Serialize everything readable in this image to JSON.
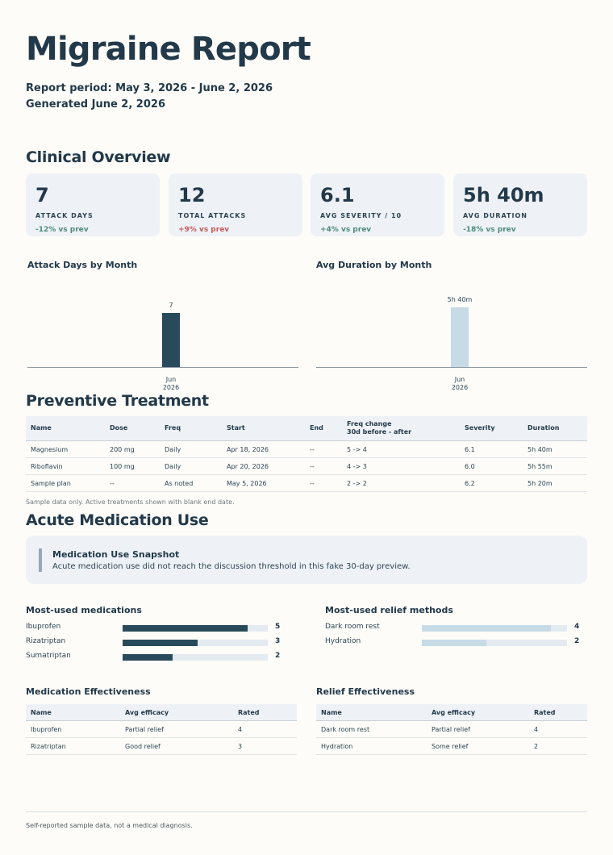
{
  "header": {
    "title": "Migraine Report",
    "period": "Report period: May 3, 2026 - June 2, 2026",
    "generated": "Generated June 2, 2026"
  },
  "overview": {
    "heading": "Clinical Overview",
    "cards": [
      {
        "value": "7",
        "label": "ATTACK DAYS",
        "change": "-12% vs prev",
        "trend": "good"
      },
      {
        "value": "12",
        "label": "TOTAL ATTACKS",
        "change": "+9% vs prev",
        "trend": "bad"
      },
      {
        "value": "6.1",
        "label": "AVG SEVERITY / 10",
        "change": "+4% vs prev",
        "trend": "good"
      },
      {
        "value": "5h 40m",
        "label": "AVG DURATION",
        "change": "-18% vs prev",
        "trend": "good"
      }
    ]
  },
  "chart_data": [
    {
      "type": "bar",
      "title": "Attack Days by Month",
      "categories": [
        "Jun 2026"
      ],
      "values": [
        7
      ],
      "data_labels": [
        "7"
      ],
      "ylim": [
        0,
        10
      ],
      "color": "#294a5a"
    },
    {
      "type": "bar",
      "title": "Avg Duration by Month",
      "categories": [
        "Jun 2026"
      ],
      "values": [
        340
      ],
      "data_labels": [
        "5h 40m"
      ],
      "ylim": [
        0,
        440
      ],
      "color": "#c6dbe6"
    }
  ],
  "chart_ticks": [
    [
      "Jun",
      "2026"
    ],
    [
      "Jun",
      "2026"
    ]
  ],
  "preventive": {
    "heading": "Preventive Treatment",
    "columns": [
      "Name",
      "Dose",
      "Freq",
      "Start",
      "End",
      "Freq change",
      "30d before - after",
      "Severity",
      "Duration"
    ],
    "rows": [
      [
        "Magnesium",
        "200 mg",
        "Daily",
        "Apr 18, 2026",
        "--",
        "5 -> 4",
        "6.1",
        "5h 40m"
      ],
      [
        "Riboflavin",
        "100 mg",
        "Daily",
        "Apr 20, 2026",
        "--",
        "4 -> 3",
        "6.0",
        "5h 55m"
      ],
      [
        "Sample plan",
        "--",
        "As noted",
        "May 5, 2026",
        "--",
        "2 -> 2",
        "6.2",
        "5h 20m"
      ]
    ],
    "note": "Sample data only. Active treatments shown with blank end date."
  },
  "acute": {
    "heading": "Acute Medication Use",
    "snapshot_title": "Medication Use Snapshot",
    "snapshot_body": "Acute medication use did not reach the discussion threshold in this fake 30-day preview.",
    "meds_title": "Most-used medications",
    "meds": [
      {
        "name": "Ibuprofen",
        "count": "5",
        "value": 5
      },
      {
        "name": "Rizatriptan",
        "count": "3",
        "value": 3
      },
      {
        "name": "Sumatriptan",
        "count": "2",
        "value": 2
      }
    ],
    "meds_max": 5.8,
    "relief_title": "Most-used relief methods",
    "relief": [
      {
        "name": "Dark room rest",
        "count": "4",
        "value": 4
      },
      {
        "name": "Hydration",
        "count": "2",
        "value": 2
      }
    ],
    "relief_max": 4.5,
    "colors": {
      "med_bar": "#294a5a",
      "relief_bar": "#c6dbe6",
      "track": "#e3ebf1"
    }
  },
  "med_eff": {
    "title": "Medication Effectiveness",
    "columns": [
      "Name",
      "Avg efficacy",
      "Rated"
    ],
    "rows": [
      [
        "Ibuprofen",
        "Partial relief",
        "4"
      ],
      [
        "Rizatriptan",
        "Good relief",
        "3"
      ]
    ]
  },
  "relief_eff": {
    "title": "Relief Effectiveness",
    "columns": [
      "Name",
      "Avg efficacy",
      "Rated"
    ],
    "rows": [
      [
        "Dark room rest",
        "Partial relief",
        "4"
      ],
      [
        "Hydration",
        "Some relief",
        "2"
      ]
    ]
  },
  "footer": "Self-reported sample data, not a medical diagnosis."
}
